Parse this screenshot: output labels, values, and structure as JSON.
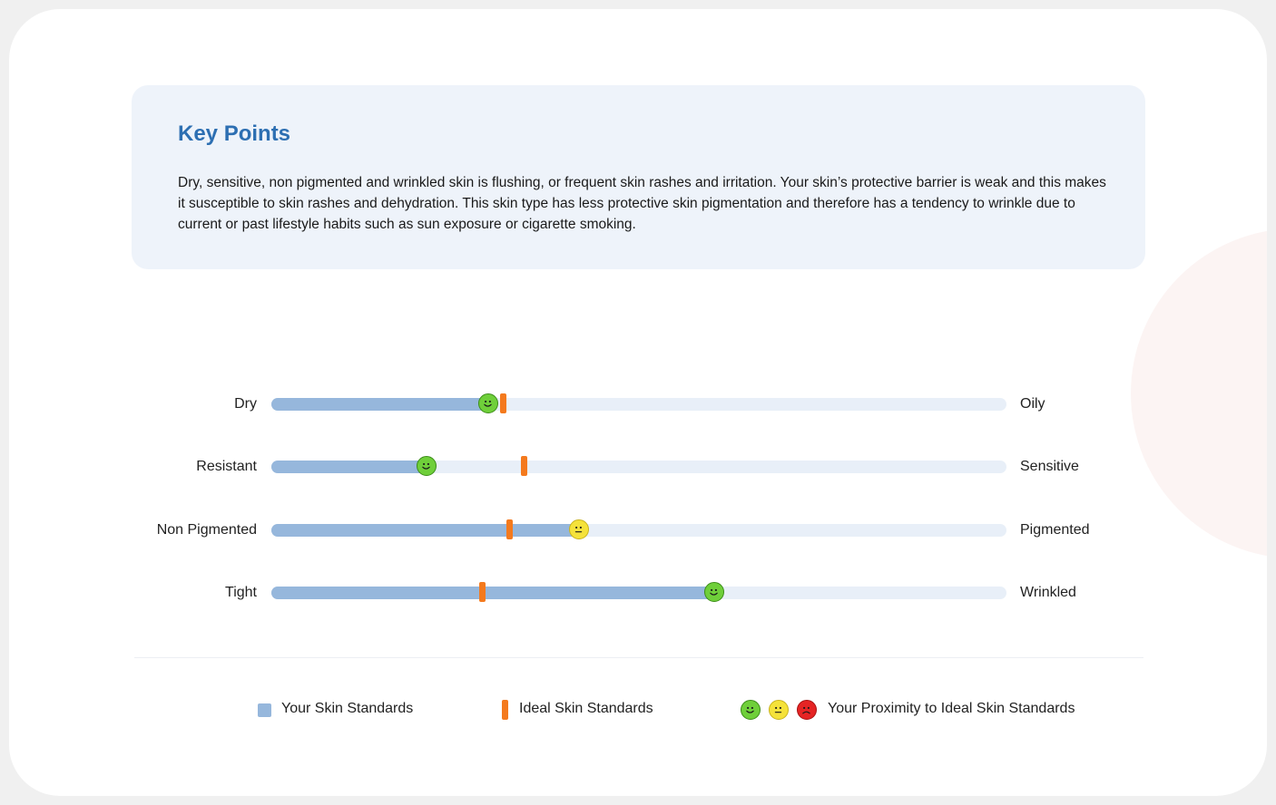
{
  "key_points": {
    "title": "Key Points",
    "text": "Dry, sensitive, non pigmented and wrinkled skin is flushing, or frequent skin rashes and irritation.  Your skin’s protective barrier is weak and this makes it susceptible to skin rashes and dehydration. This skin type has less protective skin pigmentation and therefore has a tendency to wrinkle due to current or past lifestyle habits such as sun exposure or cigarette smoking."
  },
  "scales": [
    {
      "left_label": "Dry",
      "right_label": "Oily",
      "your_value": 0.295,
      "ideal_value": 0.315,
      "proximity": "green"
    },
    {
      "left_label": "Resistant",
      "right_label": "Sensitive",
      "your_value": 0.211,
      "ideal_value": 0.343,
      "proximity": "green"
    },
    {
      "left_label": "Non Pigmented",
      "right_label": "Pigmented",
      "your_value": 0.419,
      "ideal_value": 0.324,
      "proximity": "yellow"
    },
    {
      "left_label": "Tight",
      "right_label": "Wrinkled",
      "your_value": 0.603,
      "ideal_value": 0.286,
      "proximity": "green"
    }
  ],
  "legend": {
    "your_label": "Your Skin Standards",
    "ideal_label": "Ideal Skin Standards",
    "proximity_label": "Your Proximity to Ideal Skin Standards",
    "proximity_faces": [
      "green",
      "yellow",
      "red"
    ]
  },
  "colors": {
    "title_blue": "#2d6fb2",
    "your_fill": "#96b7dc",
    "track": "#e8eff8",
    "ideal_marker": "#f47a1e",
    "face_green": "#6fcf3a",
    "face_yellow": "#f5e23a",
    "face_red": "#e52424"
  }
}
